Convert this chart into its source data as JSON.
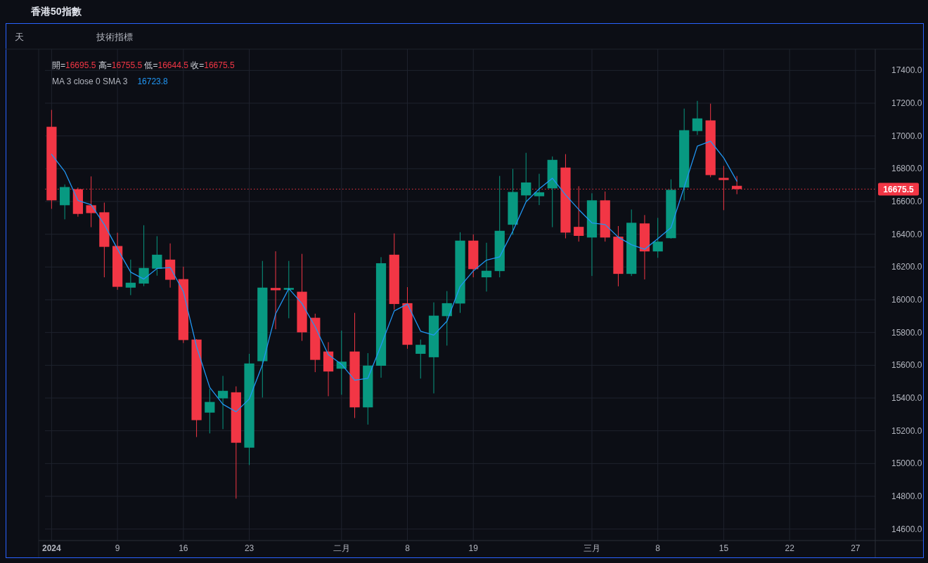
{
  "chart_data": {
    "type": "candlestick",
    "title": "香港50指數",
    "categories": [
      "2024",
      null,
      null,
      null,
      null,
      "9",
      null,
      null,
      null,
      null,
      "16",
      null,
      null,
      null,
      null,
      "23",
      null,
      null,
      null,
      null,
      null,
      null,
      "二月",
      null,
      null,
      null,
      null,
      "8",
      null,
      null,
      null,
      null,
      "19",
      null,
      null,
      null,
      null,
      null,
      null,
      null,
      null,
      "三月",
      null,
      null,
      null,
      null,
      "8",
      null,
      null,
      null,
      null,
      "15",
      null,
      null,
      null,
      null,
      "22",
      null,
      null,
      null,
      null,
      "27",
      null
    ],
    "ohlc": [
      [
        17056,
        17159,
        16555,
        16607
      ],
      [
        16577,
        16704,
        16491,
        16688
      ],
      [
        16675,
        16685,
        16507,
        16524
      ],
      [
        16577,
        16753,
        16443,
        16529
      ],
      [
        16534,
        16593,
        16137,
        16323
      ],
      [
        16328,
        16409,
        16061,
        16079
      ],
      [
        16074,
        16245,
        16028,
        16104
      ],
      [
        16099,
        16455,
        16083,
        16194
      ],
      [
        16190,
        16388,
        16147,
        16275
      ],
      [
        16245,
        16344,
        16074,
        16122
      ],
      [
        16126,
        16202,
        15736,
        15754
      ],
      [
        15757,
        15760,
        15162,
        15265
      ],
      [
        15311,
        15457,
        15184,
        15376
      ],
      [
        15398,
        15535,
        15210,
        15444
      ],
      [
        15435,
        15471,
        14786,
        15127
      ],
      [
        15097,
        15670,
        14991,
        15611
      ],
      [
        15625,
        16237,
        15403,
        16074
      ],
      [
        16072,
        16296,
        15820,
        16058
      ],
      [
        16061,
        16237,
        15887,
        16072
      ],
      [
        16049,
        16280,
        15749,
        15801
      ],
      [
        15890,
        15915,
        15558,
        15633
      ],
      [
        15684,
        15741,
        15411,
        15562
      ],
      [
        15579,
        15812,
        15420,
        15622
      ],
      [
        15684,
        15920,
        15278,
        15343
      ],
      [
        15343,
        15674,
        15238,
        15598
      ],
      [
        15597,
        16260,
        15524,
        16223
      ],
      [
        16275,
        16405,
        15939,
        15974
      ],
      [
        15979,
        16077,
        15701,
        15725
      ],
      [
        15670,
        15757,
        15519,
        15725
      ],
      [
        15649,
        15984,
        15428,
        15903
      ],
      [
        15900,
        16053,
        15720,
        15979
      ],
      [
        15977,
        16412,
        15920,
        16361
      ],
      [
        16361,
        16399,
        16137,
        16187
      ],
      [
        16137,
        16348,
        16050,
        16177
      ],
      [
        16175,
        16756,
        16137,
        16421
      ],
      [
        16458,
        16799,
        16396,
        16658
      ],
      [
        16637,
        16897,
        16600,
        16716
      ],
      [
        16632,
        16769,
        16578,
        16656
      ],
      [
        16680,
        16875,
        16443,
        16854
      ],
      [
        16807,
        16889,
        16375,
        16410
      ],
      [
        16445,
        16693,
        16355,
        16390
      ],
      [
        16380,
        16650,
        16145,
        16607
      ],
      [
        16607,
        16661,
        16355,
        16380
      ],
      [
        16385,
        16450,
        16082,
        16158
      ],
      [
        16158,
        16551,
        16145,
        16470
      ],
      [
        16466,
        16517,
        16124,
        16295
      ],
      [
        16295,
        16500,
        16256,
        16355
      ],
      [
        16376,
        16735,
        16373,
        16671
      ],
      [
        16685,
        17167,
        16607,
        17035
      ],
      [
        17030,
        17214,
        17006,
        17107
      ],
      [
        17095,
        17197,
        16748,
        16761
      ],
      [
        16744,
        16817,
        16547,
        16731
      ],
      [
        16695.5,
        16755.5,
        16644.5,
        16675.5
      ],
      null,
      null,
      null,
      null,
      null,
      null,
      null,
      null,
      null,
      null
    ],
    "colors": [
      "#f23645",
      "#089981",
      "#f23645",
      "#f23645",
      "#f23645",
      "#f23645",
      "#089981",
      "#089981",
      "#089981",
      "#f23645",
      "#f23645",
      "#f23645",
      "#089981",
      "#089981",
      "#f23645",
      "#089981",
      "#089981",
      "#f23645",
      "#089981",
      "#f23645",
      "#f23645",
      "#f23645",
      "#089981",
      "#f23645",
      "#089981",
      "#089981",
      "#f23645",
      "#f23645",
      "#089981",
      "#089981",
      "#089981",
      "#089981",
      "#f23645",
      "#089981",
      "#089981",
      "#089981",
      "#089981",
      "#089981",
      "#089981",
      "#f23645",
      "#f23645",
      "#089981",
      "#f23645",
      "#f23645",
      "#089981",
      "#f23645",
      "#089981",
      "#089981",
      "#089981",
      "#089981",
      "#f23645",
      "#f23645",
      "#f23645",
      null,
      null,
      null,
      null,
      null,
      null,
      null,
      null,
      null,
      null
    ],
    "series": [
      {
        "type": "line",
        "color": "#2196f3",
        "values": [
          16888,
          16783,
          16606,
          16580,
          16459,
          16310,
          16169,
          16126,
          16191,
          16197,
          16050,
          15714,
          15465,
          15362,
          15316,
          15394,
          15604,
          15914,
          16068,
          15977,
          15835,
          15665,
          15606,
          15509,
          15521,
          15721,
          15932,
          15974,
          15808,
          15784,
          15869,
          16081,
          16176,
          16242,
          16262,
          16419,
          16598,
          16677,
          16742,
          16640,
          16551,
          16469,
          16459,
          16382,
          16336,
          16308,
          16373,
          16440,
          16687,
          16938,
          16968,
          16866,
          16723.8,
          null,
          null,
          null,
          null,
          null,
          null,
          null,
          null,
          null,
          null
        ]
      }
    ],
    "ylim": [
      14530,
      17530
    ],
    "yticks": [
      {
        "value": 14600,
        "label": "14600.0"
      },
      {
        "value": 14800,
        "label": "14800.0"
      },
      {
        "value": 15000,
        "label": "15000.0"
      },
      {
        "value": 15200,
        "label": "15200.0"
      },
      {
        "value": 15400,
        "label": "15400.0"
      },
      {
        "value": 15600,
        "label": "15600.0"
      },
      {
        "value": 15800,
        "label": "15800.0"
      },
      {
        "value": 16000,
        "label": "16000.0"
      },
      {
        "value": 16200,
        "label": "16200.0"
      },
      {
        "value": 16400,
        "label": "16400.0"
      },
      {
        "value": 16600,
        "label": "16600.0"
      },
      {
        "value": 16800,
        "label": "16800.0"
      },
      {
        "value": 17000,
        "label": "17000.0"
      },
      {
        "value": 17200,
        "label": "17200.0"
      },
      {
        "value": 17400,
        "label": "17400.0"
      }
    ],
    "grid": true,
    "ref_lines": [
      {
        "axis": "y",
        "value": 16675.5,
        "label": "16675.5",
        "color": "#f23645",
        "line_style": "dotted"
      }
    ],
    "annotations": [
      "天",
      "技術指標",
      "開=",
      "16695.5",
      "高=",
      "16755.5",
      "低=",
      "16644.5",
      "收=",
      "16675.5",
      "MA 3 close 0 SMA 3",
      "16723.8"
    ]
  }
}
